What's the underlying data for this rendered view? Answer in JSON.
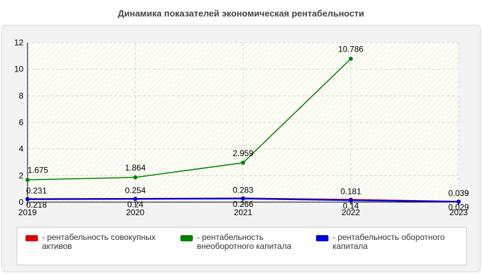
{
  "chart_data": {
    "type": "line",
    "title": "Динамика показателей экономическая рентабельности",
    "x": [
      "2019",
      "2020",
      "2021",
      "2022",
      "2023"
    ],
    "ylim": [
      0,
      12
    ],
    "yticks": [
      0,
      2,
      4,
      6,
      8,
      10,
      12
    ],
    "grid": true,
    "legend_position": "bottom",
    "series": [
      {
        "name": "- рентабельность совокупных активов",
        "color": "#e00000",
        "values": [
          0.231,
          0.254,
          0.283,
          0.181,
          0.039
        ],
        "labels": [
          "0.231",
          "0.254",
          "0.283",
          "0.181",
          "0.039"
        ]
      },
      {
        "name": "- рентабельность внеоборотного капитала",
        "color": "#008000",
        "values": [
          1.675,
          1.864,
          2.959,
          10.786,
          null
        ],
        "labels": [
          "1.675",
          "1.864",
          "2.959",
          "10.786",
          ""
        ]
      },
      {
        "name": "- рентабельность оборотного капитала",
        "color": "#0000e0",
        "values": [
          0.218,
          0.24,
          0.266,
          0.14,
          0.029
        ],
        "labels": [
          "0.218",
          "0.24",
          "0.266",
          "0.14",
          "0.029"
        ]
      }
    ]
  }
}
